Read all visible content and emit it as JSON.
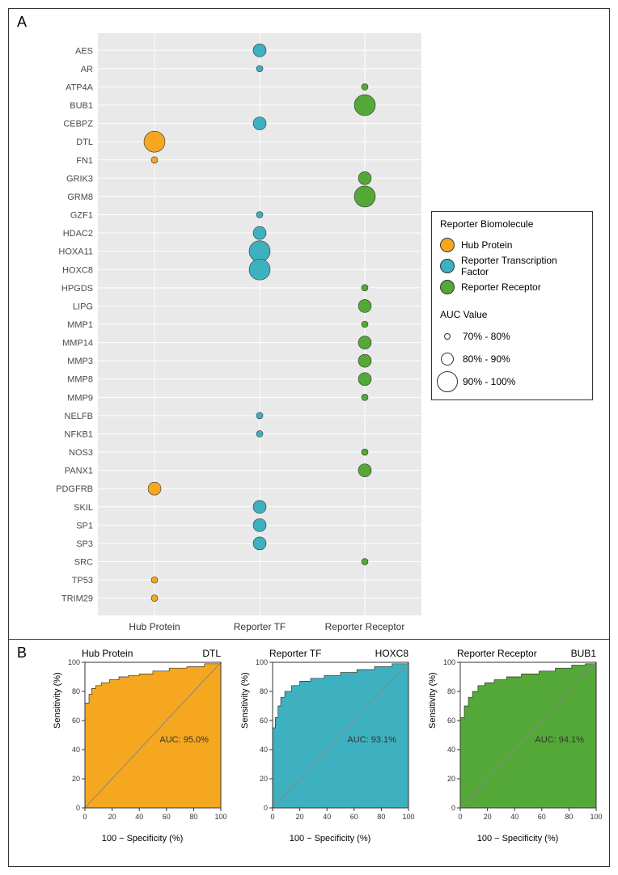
{
  "colors": {
    "hub_protein": "#f5a720",
    "reporter_tf": "#3db1bf",
    "reporter_receptor": "#54a838",
    "plot_bg_a": "#e9e9e9",
    "grid_a": "#ffffff",
    "panel_border": "#333333",
    "text": "#333333",
    "roc_diag": "#888888"
  },
  "panelA": {
    "label": "A",
    "x_categories": [
      "Hub Protein",
      "Reporter TF",
      "Reporter Receptor"
    ],
    "genes": [
      "AES",
      "AR",
      "ATP4A",
      "BUB1",
      "CEBPZ",
      "DTL",
      "FN1",
      "GRIK3",
      "GRM8",
      "GZF1",
      "HDAC2",
      "HOXA11",
      "HOXC8",
      "HPGDS",
      "LIPG",
      "MMP1",
      "MMP14",
      "MMP3",
      "MMP8",
      "MMP9",
      "NELFB",
      "NFKB1",
      "NOS3",
      "PANX1",
      "PDGFRB",
      "SKIL",
      "SP1",
      "SP3",
      "SRC",
      "TP53",
      "TRIM29"
    ],
    "points": [
      {
        "gene": "AES",
        "x": "Reporter TF",
        "size": "80-90"
      },
      {
        "gene": "AR",
        "x": "Reporter TF",
        "size": "70-80"
      },
      {
        "gene": "ATP4A",
        "x": "Reporter Receptor",
        "size": "70-80"
      },
      {
        "gene": "BUB1",
        "x": "Reporter Receptor",
        "size": "90-100"
      },
      {
        "gene": "CEBPZ",
        "x": "Reporter TF",
        "size": "80-90"
      },
      {
        "gene": "DTL",
        "x": "Hub Protein",
        "size": "90-100"
      },
      {
        "gene": "FN1",
        "x": "Hub Protein",
        "size": "70-80"
      },
      {
        "gene": "GRIK3",
        "x": "Reporter Receptor",
        "size": "80-90"
      },
      {
        "gene": "GRM8",
        "x": "Reporter Receptor",
        "size": "90-100"
      },
      {
        "gene": "GZF1",
        "x": "Reporter TF",
        "size": "70-80"
      },
      {
        "gene": "HDAC2",
        "x": "Reporter TF",
        "size": "80-90"
      },
      {
        "gene": "HOXA11",
        "x": "Reporter TF",
        "size": "90-100"
      },
      {
        "gene": "HOXC8",
        "x": "Reporter TF",
        "size": "90-100"
      },
      {
        "gene": "HPGDS",
        "x": "Reporter Receptor",
        "size": "70-80"
      },
      {
        "gene": "LIPG",
        "x": "Reporter Receptor",
        "size": "80-90"
      },
      {
        "gene": "MMP1",
        "x": "Reporter Receptor",
        "size": "70-80"
      },
      {
        "gene": "MMP14",
        "x": "Reporter Receptor",
        "size": "80-90"
      },
      {
        "gene": "MMP3",
        "x": "Reporter Receptor",
        "size": "80-90"
      },
      {
        "gene": "MMP8",
        "x": "Reporter Receptor",
        "size": "80-90"
      },
      {
        "gene": "MMP9",
        "x": "Reporter Receptor",
        "size": "70-80"
      },
      {
        "gene": "NELFB",
        "x": "Reporter TF",
        "size": "70-80"
      },
      {
        "gene": "NFKB1",
        "x": "Reporter TF",
        "size": "70-80"
      },
      {
        "gene": "NOS3",
        "x": "Reporter Receptor",
        "size": "70-80"
      },
      {
        "gene": "PANX1",
        "x": "Reporter Receptor",
        "size": "80-90"
      },
      {
        "gene": "PDGFRB",
        "x": "Hub Protein",
        "size": "80-90"
      },
      {
        "gene": "SKIL",
        "x": "Reporter TF",
        "size": "80-90"
      },
      {
        "gene": "SP1",
        "x": "Reporter TF",
        "size": "80-90"
      },
      {
        "gene": "SP3",
        "x": "Reporter TF",
        "size": "80-90"
      },
      {
        "gene": "SRC",
        "x": "Reporter Receptor",
        "size": "70-80"
      },
      {
        "gene": "TP53",
        "x": "Hub Protein",
        "size": "70-80"
      },
      {
        "gene": "TRIM29",
        "x": "Hub Protein",
        "size": "70-80"
      }
    ],
    "size_scale": {
      "70-80": 4,
      "80-90": 8,
      "90-100": 13
    },
    "column_color": {
      "Hub Protein": "#f5a720",
      "Reporter TF": "#3db1bf",
      "Reporter Receptor": "#54a838"
    }
  },
  "legend": {
    "bio_title": "Reporter Biomolecule",
    "bio_items": [
      {
        "label": "Hub Protein",
        "color": "#f5a720"
      },
      {
        "label": "Reporter Transcription Factor",
        "color": "#3db1bf"
      },
      {
        "label": "Reporter Receptor",
        "color": "#54a838"
      }
    ],
    "size_title": "AUC Value",
    "size_items": [
      {
        "label": "70% - 80%",
        "d": 8
      },
      {
        "label": "80% - 90%",
        "d": 16
      },
      {
        "label": "90% - 100%",
        "d": 26
      }
    ]
  },
  "panelB": {
    "label": "B",
    "ylabel": "Sensitivity (%)",
    "xlabel": "100 − Specificity (%)",
    "ticks": [
      0,
      20,
      40,
      60,
      80,
      100
    ],
    "plots": [
      {
        "title_left": "Hub Protein",
        "title_right": "DTL",
        "auc_text": "AUC: 95.0%",
        "fill": "#f5a720",
        "curve": [
          [
            0,
            0
          ],
          [
            0,
            72
          ],
          [
            3,
            78
          ],
          [
            5,
            82
          ],
          [
            8,
            84
          ],
          [
            12,
            86
          ],
          [
            18,
            88
          ],
          [
            25,
            90
          ],
          [
            32,
            91
          ],
          [
            40,
            92
          ],
          [
            50,
            94
          ],
          [
            62,
            96
          ],
          [
            75,
            97
          ],
          [
            88,
            99
          ],
          [
            100,
            100
          ]
        ]
      },
      {
        "title_left": "Reporter TF",
        "title_right": "HOXC8",
        "auc_text": "AUC: 93.1%",
        "fill": "#3db1bf",
        "curve": [
          [
            0,
            0
          ],
          [
            0,
            55
          ],
          [
            2,
            62
          ],
          [
            4,
            70
          ],
          [
            6,
            76
          ],
          [
            9,
            80
          ],
          [
            14,
            84
          ],
          [
            20,
            87
          ],
          [
            28,
            89
          ],
          [
            38,
            91
          ],
          [
            50,
            93
          ],
          [
            62,
            95
          ],
          [
            75,
            97
          ],
          [
            88,
            99
          ],
          [
            100,
            100
          ]
        ]
      },
      {
        "title_left": "Reporter Receptor",
        "title_right": "BUB1",
        "auc_text": "AUC: 94.1%",
        "fill": "#54a838",
        "curve": [
          [
            0,
            0
          ],
          [
            0,
            62
          ],
          [
            3,
            70
          ],
          [
            6,
            76
          ],
          [
            9,
            80
          ],
          [
            13,
            84
          ],
          [
            18,
            86
          ],
          [
            25,
            88
          ],
          [
            34,
            90
          ],
          [
            45,
            92
          ],
          [
            58,
            94
          ],
          [
            70,
            96
          ],
          [
            82,
            98
          ],
          [
            92,
            99
          ],
          [
            100,
            100
          ]
        ]
      }
    ]
  }
}
